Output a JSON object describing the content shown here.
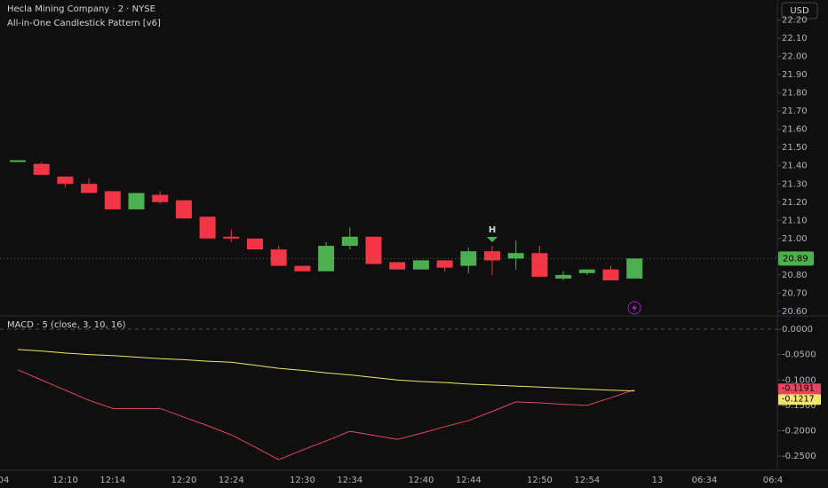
{
  "chart_data": [
    {
      "type": "candlestick",
      "title": "Hecla Mining Company · 2 · NYSE",
      "subtitle": "All-in-One Candlestick Pattern [v6]",
      "currency": "USD",
      "categories": [
        null,
        null,
        "12:10",
        null,
        "12:14",
        null,
        null,
        "12:20",
        null,
        "12:24",
        null,
        null,
        "12:30",
        null,
        "12:34",
        null,
        null,
        "12:40",
        null,
        "12:44",
        null,
        null,
        "12:50",
        null,
        "12:54",
        null,
        null
      ],
      "edge_labels": [
        "04"
      ],
      "future_labels": [
        "13",
        "06:34",
        "06:4"
      ],
      "open": [
        21.42,
        21.41,
        21.34,
        21.3,
        21.26,
        21.16,
        21.24,
        21.21,
        21.12,
        21.01,
        21.0,
        20.94,
        20.85,
        20.82,
        20.96,
        21.01,
        20.87,
        20.83,
        20.88,
        20.85,
        20.93,
        20.89,
        20.92,
        20.78,
        20.81,
        20.83,
        20.78
      ],
      "high": [
        21.43,
        21.42,
        21.34,
        21.33,
        21.26,
        21.25,
        21.26,
        21.21,
        21.12,
        21.05,
        21.0,
        20.96,
        20.85,
        20.98,
        21.06,
        21.01,
        20.87,
        20.88,
        20.88,
        20.95,
        20.96,
        20.99,
        20.96,
        20.82,
        20.83,
        20.85,
        20.89
      ],
      "low": [
        21.42,
        21.35,
        21.28,
        21.25,
        21.16,
        21.16,
        21.19,
        21.11,
        21.0,
        20.98,
        20.94,
        20.85,
        20.82,
        20.82,
        20.94,
        20.86,
        20.83,
        20.83,
        20.82,
        20.81,
        20.8,
        20.83,
        20.79,
        20.77,
        20.8,
        20.77,
        20.78
      ],
      "close": [
        21.43,
        21.35,
        21.3,
        21.25,
        21.16,
        21.25,
        21.2,
        21.11,
        21.0,
        21.0,
        20.94,
        20.85,
        20.82,
        20.96,
        21.01,
        20.86,
        20.83,
        20.88,
        20.84,
        20.93,
        20.88,
        20.92,
        20.79,
        20.8,
        20.83,
        20.77,
        20.89
      ],
      "up_color": "#4caf50",
      "down_color": "#f23645",
      "pattern_label": "H",
      "ylim": [
        20.58,
        22.31
      ],
      "yticks": [
        {
          "value": 22.2,
          "label": "22.20"
        },
        {
          "value": 22.1,
          "label": "22.10"
        },
        {
          "value": 22.0,
          "label": "22.00"
        },
        {
          "value": 21.9,
          "label": "21.90"
        },
        {
          "value": 21.8,
          "label": "21.80"
        },
        {
          "value": 21.7,
          "label": "21.70"
        },
        {
          "value": 21.6,
          "label": "21.60"
        },
        {
          "value": 21.5,
          "label": "21.50"
        },
        {
          "value": 21.4,
          "label": "21.40"
        },
        {
          "value": 21.3,
          "label": "21.30"
        },
        {
          "value": 21.2,
          "label": "21.20"
        },
        {
          "value": 21.1,
          "label": "21.10"
        },
        {
          "value": 21.0,
          "label": "21.00"
        },
        {
          "value": 20.9,
          "label": "20.90"
        },
        {
          "value": 20.8,
          "label": "20.80"
        },
        {
          "value": 20.7,
          "label": "20.70"
        },
        {
          "value": 20.6,
          "label": "20.60"
        }
      ],
      "grid": false
    },
    {
      "type": "line",
      "title": "MACD · 5 (close, 3, 10, 16)",
      "series": [
        {
          "color": "#e5455f",
          "values": [
            -0.08,
            -0.1,
            -0.12,
            -0.14,
            -0.156,
            -0.156,
            -0.156,
            -0.173,
            -0.19,
            -0.208,
            -0.232,
            -0.257,
            -0.238,
            -0.22,
            -0.201,
            -0.209,
            -0.217,
            -0.205,
            -0.192,
            -0.18,
            -0.162,
            -0.143,
            -0.145,
            -0.148,
            -0.15,
            -0.135,
            -0.1191
          ]
        },
        {
          "color": "#f5e56b",
          "values": [
            -0.04,
            -0.043,
            -0.047,
            -0.05,
            -0.052,
            -0.055,
            -0.058,
            -0.06,
            -0.063,
            -0.065,
            -0.071,
            -0.077,
            -0.081,
            -0.086,
            -0.09,
            -0.095,
            -0.1,
            -0.103,
            -0.105,
            -0.108,
            -0.11,
            -0.112,
            -0.114,
            -0.116,
            -0.118,
            -0.12,
            -0.1217
          ]
        }
      ],
      "ylim": [
        -0.276,
        0.0245
      ],
      "yticks": [
        {
          "value": 0,
          "label": "0.0000"
        },
        {
          "value": -0.05,
          "label": "-0.0500"
        },
        {
          "value": -0.1,
          "label": "-0.1000"
        },
        {
          "value": -0.15,
          "label": "-0.1500"
        },
        {
          "value": -0.2,
          "label": "-0.2000"
        },
        {
          "value": -0.25,
          "label": "-0.2500"
        }
      ],
      "grid": false
    }
  ]
}
